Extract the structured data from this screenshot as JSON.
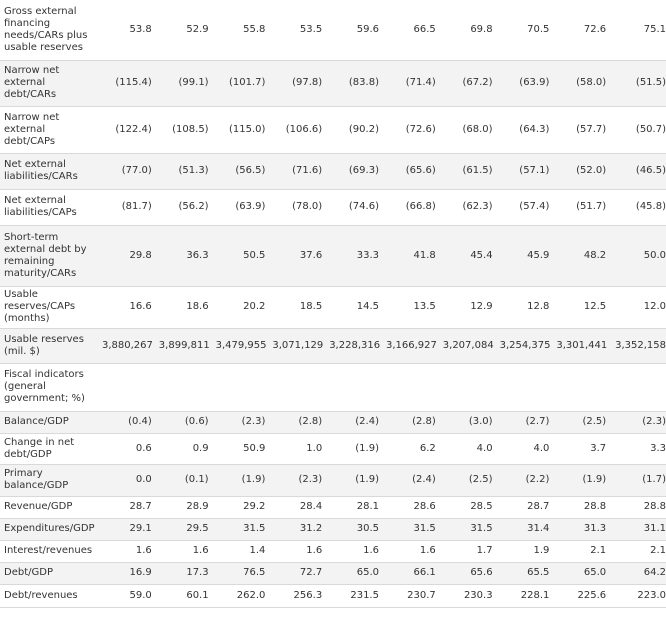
{
  "table": {
    "rows": [
      {
        "label": "Gross external financing needs/CARs plus usable reserves",
        "values": [
          "53.8",
          "52.9",
          "55.8",
          "53.5",
          "59.6",
          "66.5",
          "69.8",
          "70.5",
          "72.6",
          "75.1"
        ]
      },
      {
        "label": "Narrow net external debt/CARs",
        "values": [
          "(115.4)",
          "(99.1)",
          "(101.7)",
          "(97.8)",
          "(83.8)",
          "(71.4)",
          "(67.2)",
          "(63.9)",
          "(58.0)",
          "(51.5)"
        ]
      },
      {
        "label": "Narrow net external debt/CAPs",
        "values": [
          "(122.4)",
          "(108.5)",
          "(115.0)",
          "(106.6)",
          "(90.2)",
          "(72.6)",
          "(68.0)",
          "(64.3)",
          "(57.7)",
          "(50.7)"
        ]
      },
      {
        "label": "Net external liabilities/CARs",
        "values": [
          "(77.0)",
          "(51.3)",
          "(56.5)",
          "(71.6)",
          "(69.3)",
          "(65.6)",
          "(61.5)",
          "(57.1)",
          "(52.0)",
          "(46.5)"
        ]
      },
      {
        "label": "Net external liabilities/CAPs",
        "values": [
          "(81.7)",
          "(56.2)",
          "(63.9)",
          "(78.0)",
          "(74.6)",
          "(66.8)",
          "(62.3)",
          "(57.4)",
          "(51.7)",
          "(45.8)"
        ]
      },
      {
        "label": "Short-term external debt by remaining maturity/CARs",
        "values": [
          "29.8",
          "36.3",
          "50.5",
          "37.6",
          "33.3",
          "41.8",
          "45.4",
          "45.9",
          "48.2",
          "50.0"
        ]
      },
      {
        "label": "Usable reserves/CAPs (months)",
        "values": [
          "16.6",
          "18.6",
          "20.2",
          "18.5",
          "14.5",
          "13.5",
          "12.9",
          "12.8",
          "12.5",
          "12.0"
        ]
      },
      {
        "label": "Usable reserves (mil. $)",
        "values": [
          "3,880,267",
          "3,899,811",
          "3,479,955",
          "3,071,129",
          "3,228,316",
          "3,166,927",
          "3,207,084",
          "3,254,375",
          "3,301,441",
          "3,352,158"
        ]
      },
      {
        "label": "Fiscal indicators (general government; %)",
        "values": [
          "",
          "",
          "",
          "",
          "",
          "",
          "",
          "",
          "",
          ""
        ]
      },
      {
        "label": "Balance/GDP",
        "values": [
          "(0.4)",
          "(0.6)",
          "(2.3)",
          "(2.8)",
          "(2.4)",
          "(2.8)",
          "(3.0)",
          "(2.7)",
          "(2.5)",
          "(2.3)"
        ]
      },
      {
        "label": "Change in net debt/GDP",
        "values": [
          "0.6",
          "0.9",
          "50.9",
          "1.0",
          "(1.9)",
          "6.2",
          "4.0",
          "4.0",
          "3.7",
          "3.3"
        ]
      },
      {
        "label": "Primary balance/GDP",
        "values": [
          "0.0",
          "(0.1)",
          "(1.9)",
          "(2.3)",
          "(1.9)",
          "(2.4)",
          "(2.5)",
          "(2.2)",
          "(1.9)",
          "(1.7)"
        ]
      },
      {
        "label": "Revenue/GDP",
        "values": [
          "28.7",
          "28.9",
          "29.2",
          "28.4",
          "28.1",
          "28.6",
          "28.5",
          "28.7",
          "28.8",
          "28.8"
        ]
      },
      {
        "label": "Expenditures/GDP",
        "values": [
          "29.1",
          "29.5",
          "31.5",
          "31.2",
          "30.5",
          "31.5",
          "31.5",
          "31.4",
          "31.3",
          "31.1"
        ]
      },
      {
        "label": "Interest/revenues",
        "values": [
          "1.6",
          "1.6",
          "1.4",
          "1.6",
          "1.6",
          "1.6",
          "1.7",
          "1.9",
          "2.1",
          "2.1"
        ]
      },
      {
        "label": "Debt/GDP",
        "values": [
          "16.9",
          "17.3",
          "76.5",
          "72.7",
          "65.0",
          "66.1",
          "65.6",
          "65.5",
          "65.0",
          "64.2"
        ]
      },
      {
        "label": "Debt/revenues",
        "values": [
          "59.0",
          "60.1",
          "262.0",
          "256.3",
          "231.5",
          "230.7",
          "230.3",
          "228.1",
          "225.6",
          "223.0"
        ]
      }
    ]
  }
}
